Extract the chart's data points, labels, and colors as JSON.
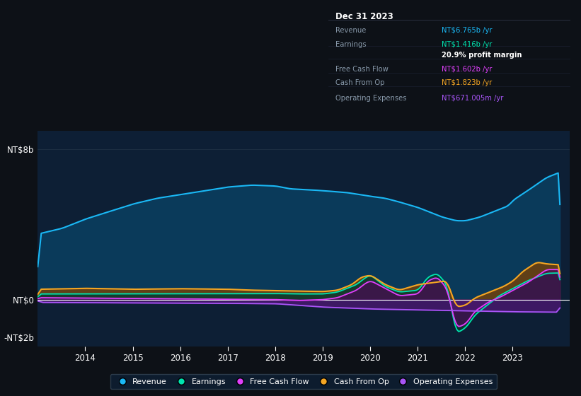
{
  "bg_color": "#0d1117",
  "plot_bg_color": "#0d1f35",
  "colors": {
    "revenue": "#1ab8f5",
    "earnings": "#00e5b0",
    "fcf": "#e040fb",
    "cashfromop": "#f5a623",
    "opex": "#a855f7"
  },
  "fill_colors": {
    "revenue": "#0a3a5a",
    "earnings": "#0a3a30",
    "fcf": "#4a0a55",
    "cashfromop": "#6a4010",
    "opex": "#4a1870"
  },
  "info_box": {
    "title": "Dec 31 2023",
    "rows": [
      {
        "label": "Revenue",
        "value": "NT$6.765b /yr",
        "color": "#1ab8f5"
      },
      {
        "label": "Earnings",
        "value": "NT$1.416b /yr",
        "color": "#00e5b0"
      },
      {
        "label": "",
        "value": "20.9% profit margin",
        "color": "#ffffff",
        "bold": true
      },
      {
        "label": "Free Cash Flow",
        "value": "NT$1.602b /yr",
        "color": "#e040fb"
      },
      {
        "label": "Cash From Op",
        "value": "NT$1.823b /yr",
        "color": "#f5a623"
      },
      {
        "label": "Operating Expenses",
        "value": "NT$671.005m /yr",
        "color": "#a855f7"
      }
    ]
  },
  "legend": [
    {
      "label": "Revenue",
      "color": "#1ab8f5"
    },
    {
      "label": "Earnings",
      "color": "#00e5b0"
    },
    {
      "label": "Free Cash Flow",
      "color": "#e040fb"
    },
    {
      "label": "Cash From Op",
      "color": "#f5a623"
    },
    {
      "label": "Operating Expenses",
      "color": "#a855f7"
    }
  ]
}
